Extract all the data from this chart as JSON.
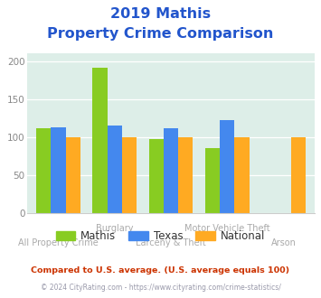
{
  "title_line1": "2019 Mathis",
  "title_line2": "Property Crime Comparison",
  "series": [
    "Mathis",
    "Texas",
    "National"
  ],
  "values": {
    "Mathis": [
      112,
      191,
      97,
      85,
      null
    ],
    "Texas": [
      113,
      115,
      112,
      122,
      null
    ],
    "National": [
      100,
      100,
      100,
      100,
      100
    ]
  },
  "colors": {
    "Mathis": "#88cc22",
    "Texas": "#4488ee",
    "National": "#ffaa22"
  },
  "ylim": [
    0,
    210
  ],
  "yticks": [
    0,
    50,
    100,
    150,
    200
  ],
  "plot_bg_color": "#ddeee8",
  "title_color": "#2255cc",
  "top_labels": [
    [
      1,
      "Burglary"
    ],
    [
      3,
      "Motor Vehicle Theft"
    ]
  ],
  "bot_labels": [
    [
      0,
      "All Property Crime"
    ],
    [
      2,
      "Larceny & Theft"
    ],
    [
      4,
      "Arson"
    ]
  ],
  "footnote1": "Compared to U.S. average. (U.S. average equals 100)",
  "footnote2": "© 2024 CityRating.com - https://www.cityrating.com/crime-statistics/",
  "footnote1_color": "#cc3300",
  "footnote2_color": "#9999aa",
  "title_fontsize": 11.5,
  "axis_label_color": "#aaaaaa"
}
